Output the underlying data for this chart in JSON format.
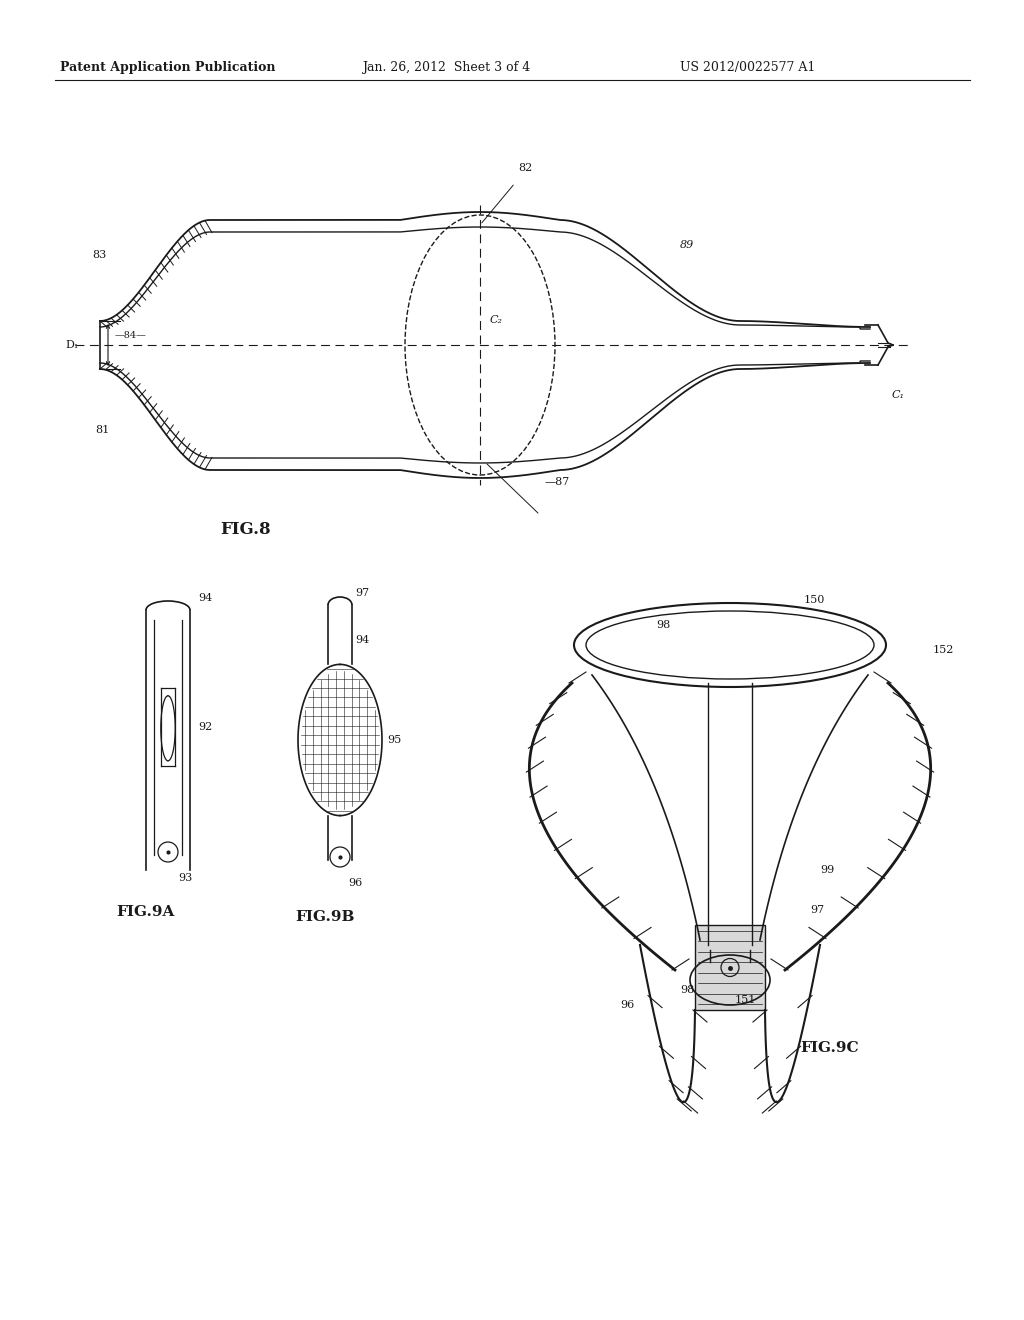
{
  "background_color": "#ffffff",
  "header_left": "Patent Application Publication",
  "header_center": "Jan. 26, 2012  Sheet 3 of 4",
  "header_right": "US 2012/0022577 A1",
  "fig8_label": "FIG.8",
  "fig9a_label": "FIG.9A",
  "fig9b_label": "FIG.9B",
  "fig9c_label": "FIG.9C",
  "line_color": "#1a1a1a",
  "font_size_header": 9,
  "font_size_label": 8,
  "font_size_fig": 11
}
